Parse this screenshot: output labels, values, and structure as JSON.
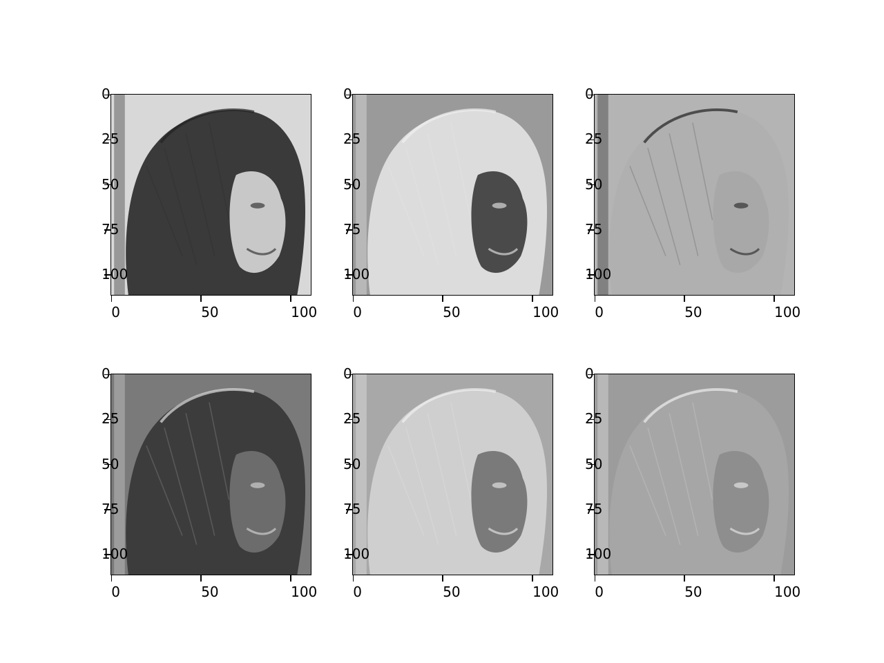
{
  "figure": {
    "layout": {
      "rows": 2,
      "cols": 3
    },
    "panels": [
      {
        "tones": {
          "background": "#d8d8d8",
          "hair": "#3a3a3a",
          "face": "#c8c8c8",
          "edge": "#222222"
        }
      },
      {
        "tones": {
          "background": "#9a9a9a",
          "hair": "#dcdcdc",
          "face": "#4a4a4a",
          "edge": "#f0f0f0"
        }
      },
      {
        "tones": {
          "background": "#b4b4b4",
          "hair": "#b0b0b0",
          "face": "#a8a8a8",
          "edge": "#222222"
        }
      },
      {
        "tones": {
          "background": "#7a7a7a",
          "hair": "#3c3c3c",
          "face": "#6c6c6c",
          "edge": "#dddddd"
        }
      },
      {
        "tones": {
          "background": "#a8a8a8",
          "hair": "#cfcfcf",
          "face": "#7a7a7a",
          "edge": "#f0f0f0"
        }
      },
      {
        "tones": {
          "background": "#9c9c9c",
          "hair": "#a6a6a6",
          "face": "#8e8e8e",
          "edge": "#eeeeee"
        }
      }
    ],
    "axes": {
      "xlim": [
        -0.5,
        111.5
      ],
      "ylim": [
        111.5,
        -0.5
      ],
      "xticks": [
        0,
        50,
        100
      ],
      "yticks": [
        0,
        25,
        50,
        75,
        100
      ],
      "xtick_labels": [
        "0",
        "50",
        "100"
      ],
      "ytick_labels": [
        "0",
        "25",
        "50",
        "75",
        "100"
      ]
    },
    "colormap": "gray"
  }
}
